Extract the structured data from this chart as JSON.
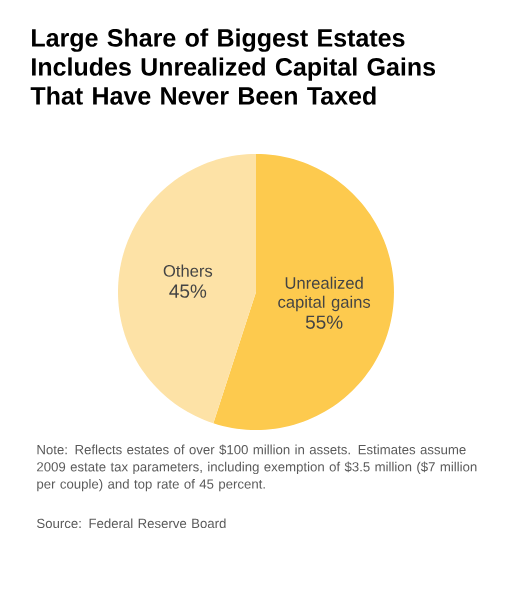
{
  "chart_data": {
    "type": "pie",
    "title": "Large Share of Biggest Estates Includes Unrealized Capital Gains That Have Never Been Taxed",
    "categories": [
      "Unrealized capital gains",
      "Others"
    ],
    "values": [
      55,
      45
    ],
    "colors": [
      "#fdca4e",
      "#fde2a6"
    ],
    "value_labels": [
      "55%",
      "45%"
    ],
    "annotations": [
      "Note: Reflects estates of over $100 million in assets. Estimates assume 2009 estate tax parameters, including exemption of $3.5 million ($7 million per couple) and top rate of 45 percent.",
      "Source: Federal Reserve Board"
    ]
  }
}
